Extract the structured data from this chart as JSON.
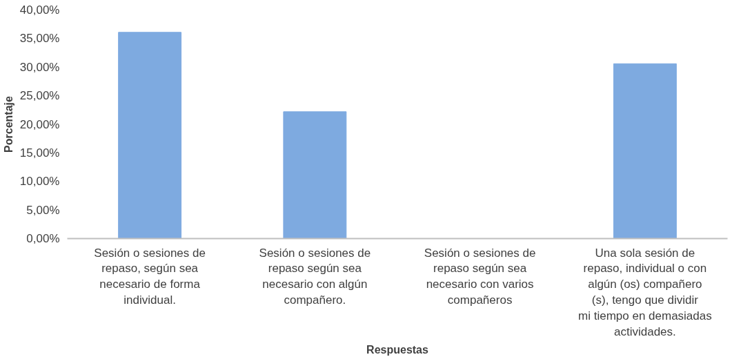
{
  "chart_data": {
    "type": "bar",
    "xlabel": "Respuestas",
    "ylabel": "Porcentaje",
    "categories": [
      "Sesión o sesiones de repaso, según sea necesario de forma individual.",
      "Sesión o sesiones de repaso según sea necesario con algún compañero.",
      "Sesión o sesiones de repaso según sea necesario con varios compañeros",
      "Una sola sesión de repaso, individual o con algún (os) compañero (s), tengo que dividir mi tiempo en demasiadas actividades."
    ],
    "values": [
      36.1,
      22.2,
      0,
      30.6
    ],
    "color": "#7eaae0",
    "ylim": [
      0,
      40
    ],
    "yticks": [
      {
        "value": 0,
        "label": "0,00%"
      },
      {
        "value": 5,
        "label": "5,00%"
      },
      {
        "value": 10,
        "label": "10,00%"
      },
      {
        "value": 15,
        "label": "15,00%"
      },
      {
        "value": 20,
        "label": "20,00%"
      },
      {
        "value": 25,
        "label": "25,00%"
      },
      {
        "value": 30,
        "label": "30,00%"
      },
      {
        "value": 35,
        "label": "35,00%"
      },
      {
        "value": 40,
        "label": "40,00%"
      }
    ],
    "grid": false
  }
}
